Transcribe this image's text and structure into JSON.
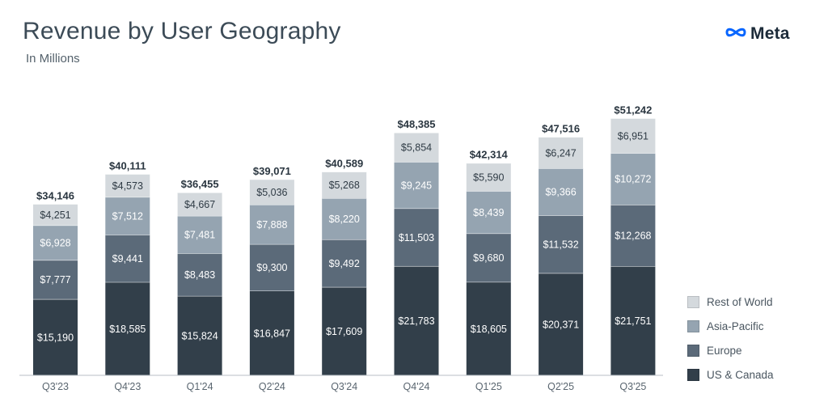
{
  "header": {
    "title": "Revenue by User Geography",
    "subtitle": "In Millions",
    "logo_text": "Meta",
    "logo_icon": "meta-infinity-icon"
  },
  "colors": {
    "us_canada": "#323f4a",
    "europe": "#5b6a79",
    "asia_pacific": "#95a4b1",
    "rest_of_world": "#d4d9dd"
  },
  "chart_data": {
    "type": "bar",
    "stacked": true,
    "title": "Revenue by User Geography",
    "subtitle": "In Millions",
    "categories": [
      "Q3'23",
      "Q4'23",
      "Q1'24",
      "Q2'24",
      "Q3'24",
      "Q4'24",
      "Q1'25",
      "Q2'25",
      "Q3'25"
    ],
    "series": [
      {
        "name": "US & Canada",
        "color": "#323f4a",
        "values": [
          15190,
          18585,
          15824,
          16847,
          17609,
          21783,
          18605,
          20371,
          21751
        ],
        "labels": [
          "$15,190",
          "$18,585",
          "$15,824",
          "$16,847",
          "$17,609",
          "$21,783",
          "$18,605",
          "$20,371",
          "$21,751"
        ]
      },
      {
        "name": "Europe",
        "color": "#5b6a79",
        "values": [
          7777,
          9441,
          8483,
          9300,
          9492,
          11503,
          9680,
          11532,
          12268
        ],
        "labels": [
          "$7,777",
          "$9,441",
          "$8,483",
          "$9,300",
          "$9,492",
          "$11,503",
          "$9,680",
          "$11,532",
          "$12,268"
        ]
      },
      {
        "name": "Asia-Pacific",
        "color": "#95a4b1",
        "values": [
          6928,
          7512,
          7481,
          7888,
          8220,
          9245,
          8439,
          9366,
          10272
        ],
        "labels": [
          "$6,928",
          "$7,512",
          "$7,481",
          "$7,888",
          "$8,220",
          "$9,245",
          "$8,439",
          "$9,366",
          "$10,272"
        ]
      },
      {
        "name": "Rest of World",
        "color": "#d4d9dd",
        "values": [
          4251,
          4573,
          4667,
          5036,
          5268,
          5854,
          5590,
          6247,
          6951
        ],
        "labels": [
          "$4,251",
          "$4,573",
          "$4,667",
          "$5,036",
          "$5,268",
          "$5,854",
          "$5,590",
          "$6,247",
          "$6,951"
        ]
      }
    ],
    "totals": [
      34146,
      40111,
      36455,
      39071,
      40589,
      48385,
      42314,
      47516,
      51242
    ],
    "total_labels": [
      "$34,146",
      "$40,111",
      "$36,455",
      "$39,071",
      "$40,589",
      "$48,385",
      "$42,314",
      "$47,516",
      "$51,242"
    ],
    "ylim": [
      0,
      55000
    ],
    "grid": false,
    "legend_position": "bottom-right"
  },
  "legend": [
    {
      "label": "Rest of World",
      "color": "#d4d9dd"
    },
    {
      "label": "Asia-Pacific",
      "color": "#95a4b1"
    },
    {
      "label": "Europe",
      "color": "#5b6a79"
    },
    {
      "label": "US & Canada",
      "color": "#323f4a"
    }
  ]
}
